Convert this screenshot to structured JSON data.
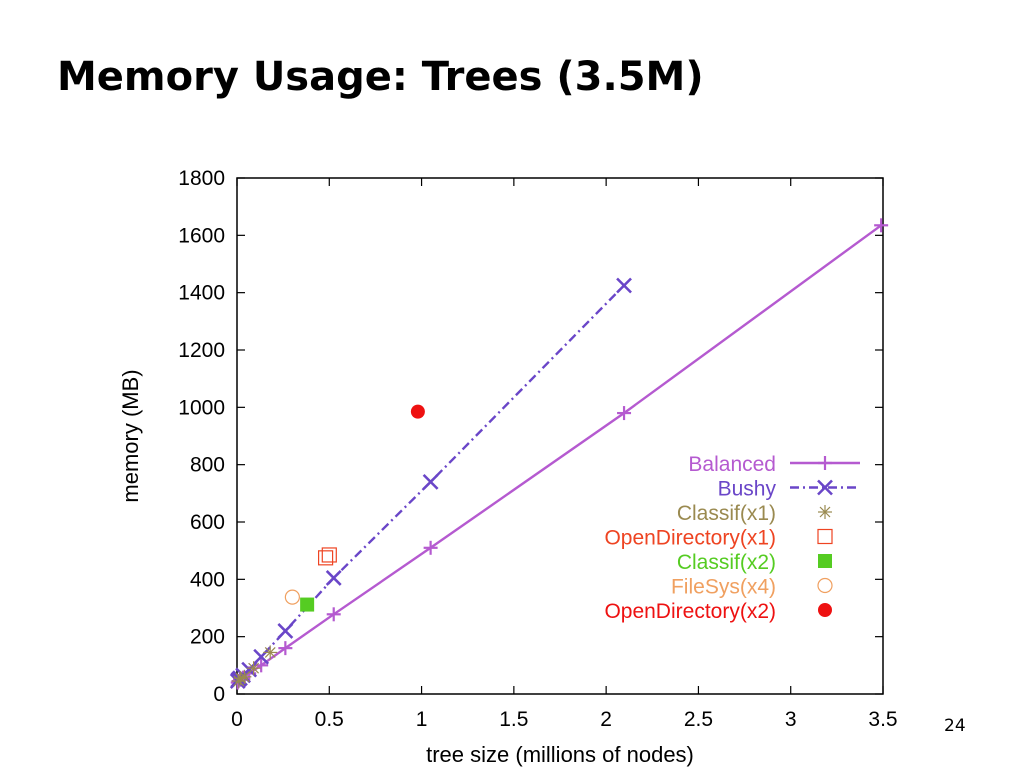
{
  "slide": {
    "title": "Memory Usage: Trees (3.5M)",
    "page_number": "24"
  },
  "chart_data": {
    "type": "line",
    "title": "",
    "xlabel": "tree size (millions of nodes)",
    "ylabel": "memory (MB)",
    "xlim": [
      0,
      3.5
    ],
    "ylim": [
      0,
      1800
    ],
    "xticks": [
      0,
      0.5,
      1,
      1.5,
      2,
      2.5,
      3,
      3.5
    ],
    "xtick_labels": [
      "0",
      "0.5",
      "1",
      "1.5",
      "2",
      "2.5",
      "3",
      "3.5"
    ],
    "yticks": [
      0,
      200,
      400,
      600,
      800,
      1000,
      1200,
      1400,
      1600,
      1800
    ],
    "ytick_labels": [
      "0",
      "200",
      "400",
      "600",
      "800",
      "1000",
      "1200",
      "1400",
      "1600",
      "1800"
    ],
    "grid": false,
    "legend_position": "right",
    "series": [
      {
        "name": "Balanced",
        "color": "#b55ad0",
        "marker": "plus",
        "line": "solid",
        "points": [
          [
            0.004,
            40
          ],
          [
            0.008,
            45
          ],
          [
            0.016,
            50
          ],
          [
            0.033,
            57
          ],
          [
            0.066,
            72
          ],
          [
            0.131,
            100
          ],
          [
            0.262,
            160
          ],
          [
            0.524,
            278
          ],
          [
            1.049,
            510
          ],
          [
            2.097,
            980
          ],
          [
            3.49,
            1635
          ]
        ]
      },
      {
        "name": "Bushy",
        "color": "#6a46c8",
        "marker": "x",
        "line": "dash-dot",
        "points": [
          [
            0.004,
            45
          ],
          [
            0.008,
            50
          ],
          [
            0.016,
            55
          ],
          [
            0.033,
            65
          ],
          [
            0.066,
            85
          ],
          [
            0.131,
            130
          ],
          [
            0.262,
            220
          ],
          [
            0.524,
            405
          ],
          [
            1.049,
            740
          ],
          [
            2.097,
            1425
          ]
        ]
      },
      {
        "name": "Classif(x1)",
        "color": "#9a8a50",
        "marker": "star",
        "line": "none",
        "points": [
          [
            0.01,
            45
          ],
          [
            0.02,
            55
          ],
          [
            0.04,
            60
          ],
          [
            0.09,
            90
          ],
          [
            0.18,
            145
          ]
        ]
      },
      {
        "name": "OpenDirectory(x1)",
        "color": "#ee4422",
        "marker": "open-square",
        "line": "none",
        "points": [
          [
            0.48,
            475
          ],
          [
            0.5,
            485
          ]
        ]
      },
      {
        "name": "Classif(x2)",
        "color": "#55cc22",
        "marker": "filled-square",
        "line": "none",
        "points": [
          [
            0.38,
            312
          ]
        ]
      },
      {
        "name": "FileSys(x4)",
        "color": "#f0a060",
        "marker": "open-circle",
        "line": "none",
        "points": [
          [
            0.3,
            338
          ]
        ]
      },
      {
        "name": "OpenDirectory(x2)",
        "color": "#ee1111",
        "marker": "filled-circle",
        "line": "none",
        "points": [
          [
            0.98,
            985
          ]
        ]
      }
    ]
  }
}
